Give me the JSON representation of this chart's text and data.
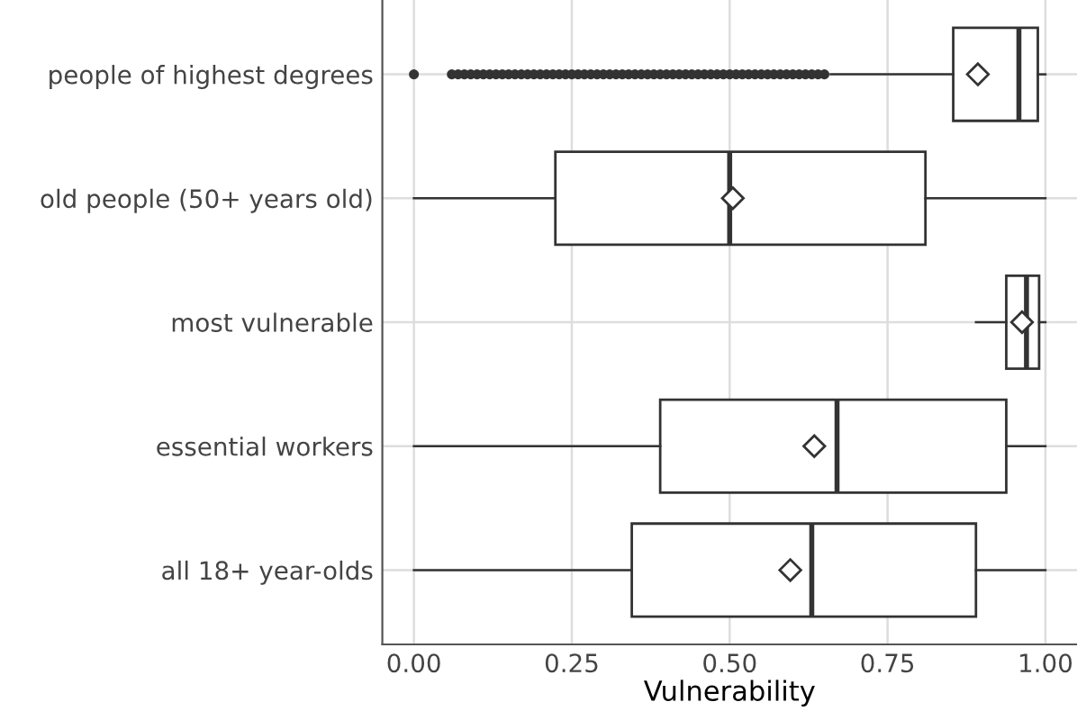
{
  "chart_data": {
    "type": "box",
    "orientation": "horizontal",
    "xlabel": "Vulnerability",
    "categories": [
      "people of highest degrees",
      "old people (50+ years old)",
      "most vulnerable",
      "essential workers",
      "all 18+ year-olds"
    ],
    "boxes": [
      {
        "low": 0.66,
        "q1": 0.854,
        "median": 0.958,
        "q3": 0.988,
        "high": 1.0,
        "mean": 0.893,
        "outliers": [
          0.0,
          0.06,
          0.07,
          0.08,
          0.09,
          0.1,
          0.11,
          0.12,
          0.13,
          0.14,
          0.15,
          0.16,
          0.17,
          0.18,
          0.19,
          0.2,
          0.21,
          0.22,
          0.23,
          0.24,
          0.25,
          0.26,
          0.27,
          0.28,
          0.29,
          0.3,
          0.31,
          0.32,
          0.33,
          0.34,
          0.35,
          0.36,
          0.37,
          0.38,
          0.39,
          0.4,
          0.41,
          0.42,
          0.43,
          0.44,
          0.45,
          0.46,
          0.47,
          0.48,
          0.49,
          0.5,
          0.51,
          0.52,
          0.53,
          0.54,
          0.55,
          0.56,
          0.57,
          0.58,
          0.59,
          0.6,
          0.61,
          0.62,
          0.63,
          0.64,
          0.65
        ]
      },
      {
        "low": 0.0,
        "q1": 0.224,
        "median": 0.5,
        "q3": 0.81,
        "high": 1.0,
        "mean": 0.505
      },
      {
        "low": 0.89,
        "q1": 0.938,
        "median": 0.97,
        "q3": 0.99,
        "high": 1.0,
        "mean": 0.963
      },
      {
        "low": 0.0,
        "q1": 0.39,
        "median": 0.67,
        "q3": 0.938,
        "high": 1.0,
        "mean": 0.634
      },
      {
        "low": 0.0,
        "q1": 0.345,
        "median": 0.63,
        "q3": 0.89,
        "high": 1.0,
        "mean": 0.596
      }
    ],
    "xlim": [
      -0.05,
      1.05
    ],
    "xticks": [
      {
        "value": 0,
        "label": "0.00"
      },
      {
        "value": 0.25,
        "label": "0.25"
      },
      {
        "value": 0.5,
        "label": "0.50"
      },
      {
        "value": 0.75,
        "label": "0.75"
      },
      {
        "value": 1,
        "label": "1.00"
      }
    ],
    "grid": true,
    "marker": "diamond"
  }
}
